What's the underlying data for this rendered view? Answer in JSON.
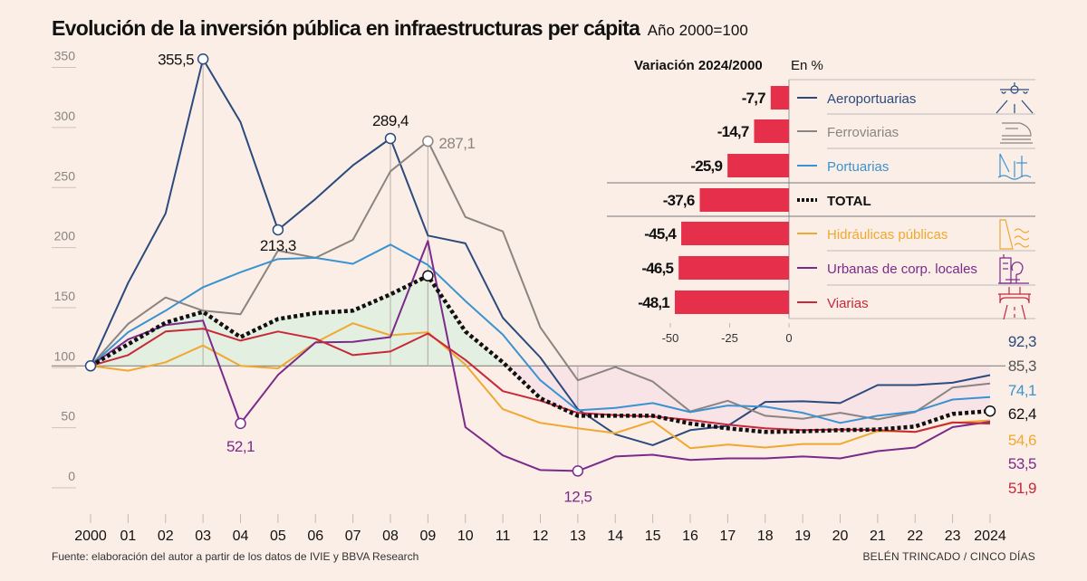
{
  "title": "Evolución de la inversión pública en infraestructuras per cápita",
  "subtitle": "Año 2000=100",
  "source": "Fuente: elaboración del autor a partir de los datos de IVIE y BBVA Research",
  "credit": "BELÉN TRINCADO / CINCO DÍAS",
  "colors": {
    "background": "#fbeee6",
    "bar": "#e52f4b",
    "positive_area": "#e3efe0",
    "negative_area": "#f8e4e6"
  },
  "chart_data": [
    {
      "type": "line",
      "title": "Evolución de la inversión pública en infraestructuras per cápita",
      "subtitle": "Año 2000=100",
      "x": [
        "2000",
        "01",
        "02",
        "03",
        "04",
        "05",
        "06",
        "07",
        "08",
        "09",
        "10",
        "11",
        "12",
        "13",
        "14",
        "15",
        "16",
        "17",
        "18",
        "19",
        "20",
        "21",
        "22",
        "23",
        "2024"
      ],
      "ylim": [
        0,
        350
      ],
      "yticks": [
        "0",
        "50",
        "100",
        "150",
        "200",
        "250",
        "300",
        "350"
      ],
      "baseline": 100,
      "series": [
        {
          "name": "Aeroportuarias",
          "color": "#2b4a7e",
          "dashed": false,
          "values": [
            100,
            169,
            227,
            355.5,
            303,
            213.3,
            239,
            267,
            289.4,
            208.5,
            202,
            140,
            107,
            64,
            43,
            34,
            46.5,
            50,
            70,
            70.5,
            69,
            84,
            84,
            86,
            92.3
          ]
        },
        {
          "name": "Ferroviarias",
          "color": "#8a8580",
          "dashed": false,
          "values": [
            100,
            135,
            157,
            146,
            143,
            196,
            190,
            205,
            262,
            287.1,
            224,
            212,
            132,
            88,
            99,
            87,
            62,
            71,
            58.5,
            56,
            61,
            55.5,
            61.5,
            82,
            85.3
          ]
        },
        {
          "name": "Portuarias",
          "color": "#3a93d0",
          "dashed": false,
          "values": [
            100,
            128,
            146,
            165.5,
            178,
            189,
            190,
            185,
            201,
            184,
            154,
            126,
            88,
            63,
            65,
            69,
            61.5,
            67,
            66,
            61,
            52.5,
            58.5,
            62,
            72,
            74.1
          ]
        },
        {
          "name": "Hidráulicas públicas",
          "color": "#f0a830",
          "dashed": false,
          "values": [
            100,
            96,
            103,
            117,
            100,
            98,
            119.5,
            135.5,
            125.5,
            128,
            101,
            64,
            52.5,
            48,
            44,
            54,
            31.5,
            34.5,
            32,
            35,
            35,
            45.7,
            45,
            52.5,
            54.6
          ]
        },
        {
          "name": "Urbanas de corp. locales",
          "color": "#7b2a8a",
          "dashed": false,
          "values": [
            100,
            122,
            134,
            137.7,
            52.1,
            92.5,
            119.5,
            120,
            124,
            204,
            49,
            25.5,
            13.3,
            12.5,
            24.6,
            26,
            21.6,
            23,
            23,
            24.6,
            23,
            29,
            32,
            49,
            53.5
          ]
        },
        {
          "name": "Viarias",
          "color": "#c8283a",
          "dashed": false,
          "values": [
            100,
            109,
            128.6,
            131,
            121,
            128.6,
            122.6,
            109,
            112,
            127,
            105,
            79,
            71,
            61,
            59,
            57.8,
            55,
            51,
            48,
            46.5,
            47,
            46.5,
            45,
            53,
            51.9
          ]
        },
        {
          "name": "TOTAL",
          "color": "#111111",
          "dashed": true,
          "values": [
            100,
            118,
            136,
            145,
            124,
            139,
            144,
            146,
            159.5,
            175,
            128.6,
            103,
            73,
            58.5,
            58.5,
            58.5,
            52,
            48,
            45,
            45.5,
            46.5,
            47,
            49.5,
            60,
            62.4
          ]
        }
      ],
      "annotations": [
        {
          "series": "Aeroportuarias",
          "x": "03",
          "label": "355,5",
          "color": "#111111"
        },
        {
          "series": "Aeroportuarias",
          "x": "05",
          "label": "213,3",
          "color": "#111111"
        },
        {
          "series": "Aeroportuarias",
          "x": "08",
          "label": "289,4",
          "color": "#111111"
        },
        {
          "series": "Ferroviarias",
          "x": "09",
          "label": "287,1",
          "color": "#8a8580"
        },
        {
          "series": "Urbanas de corp. locales",
          "x": "04",
          "label": "52,1",
          "color": "#7b2a8a"
        },
        {
          "series": "Urbanas de corp. locales",
          "x": "13",
          "label": "12,5",
          "color": "#7b2a8a"
        }
      ],
      "end_labels": [
        {
          "label": "92,3",
          "color": "#2b4a7e"
        },
        {
          "label": "85,3",
          "color": "#555555"
        },
        {
          "label": "74,1",
          "color": "#3a93d0"
        },
        {
          "label": "62,4",
          "color": "#111111"
        },
        {
          "label": "54,6",
          "color": "#f0a830"
        },
        {
          "label": "53,5",
          "color": "#7b2a8a"
        },
        {
          "label": "51,9",
          "color": "#c8283a"
        }
      ]
    },
    {
      "type": "bar",
      "orientation": "horizontal",
      "title": "Variación 2024/2000",
      "unit": "En %",
      "categories": [
        "Aeroportuarias",
        "Ferroviarias",
        "Portuarias",
        "TOTAL",
        "Hidráulicas públicas",
        "Urbanas de corp. locales",
        "Viarias"
      ],
      "values": [
        -7.7,
        -14.7,
        -25.9,
        -37.6,
        -45.4,
        -46.5,
        -48.1
      ],
      "value_labels": [
        "-7,7",
        "-14,7",
        "-25,9",
        "-37,6",
        "-45,4",
        "-46,5",
        "-48,1"
      ],
      "icons": [
        "airplane-icon",
        "train-icon",
        "port-crane-icon",
        null,
        "dam-icon",
        "city-park-icon",
        "road-bridge-icon"
      ],
      "xlim": [
        -55,
        0
      ],
      "xticks": [
        "-50",
        "-25",
        "0"
      ]
    }
  ]
}
